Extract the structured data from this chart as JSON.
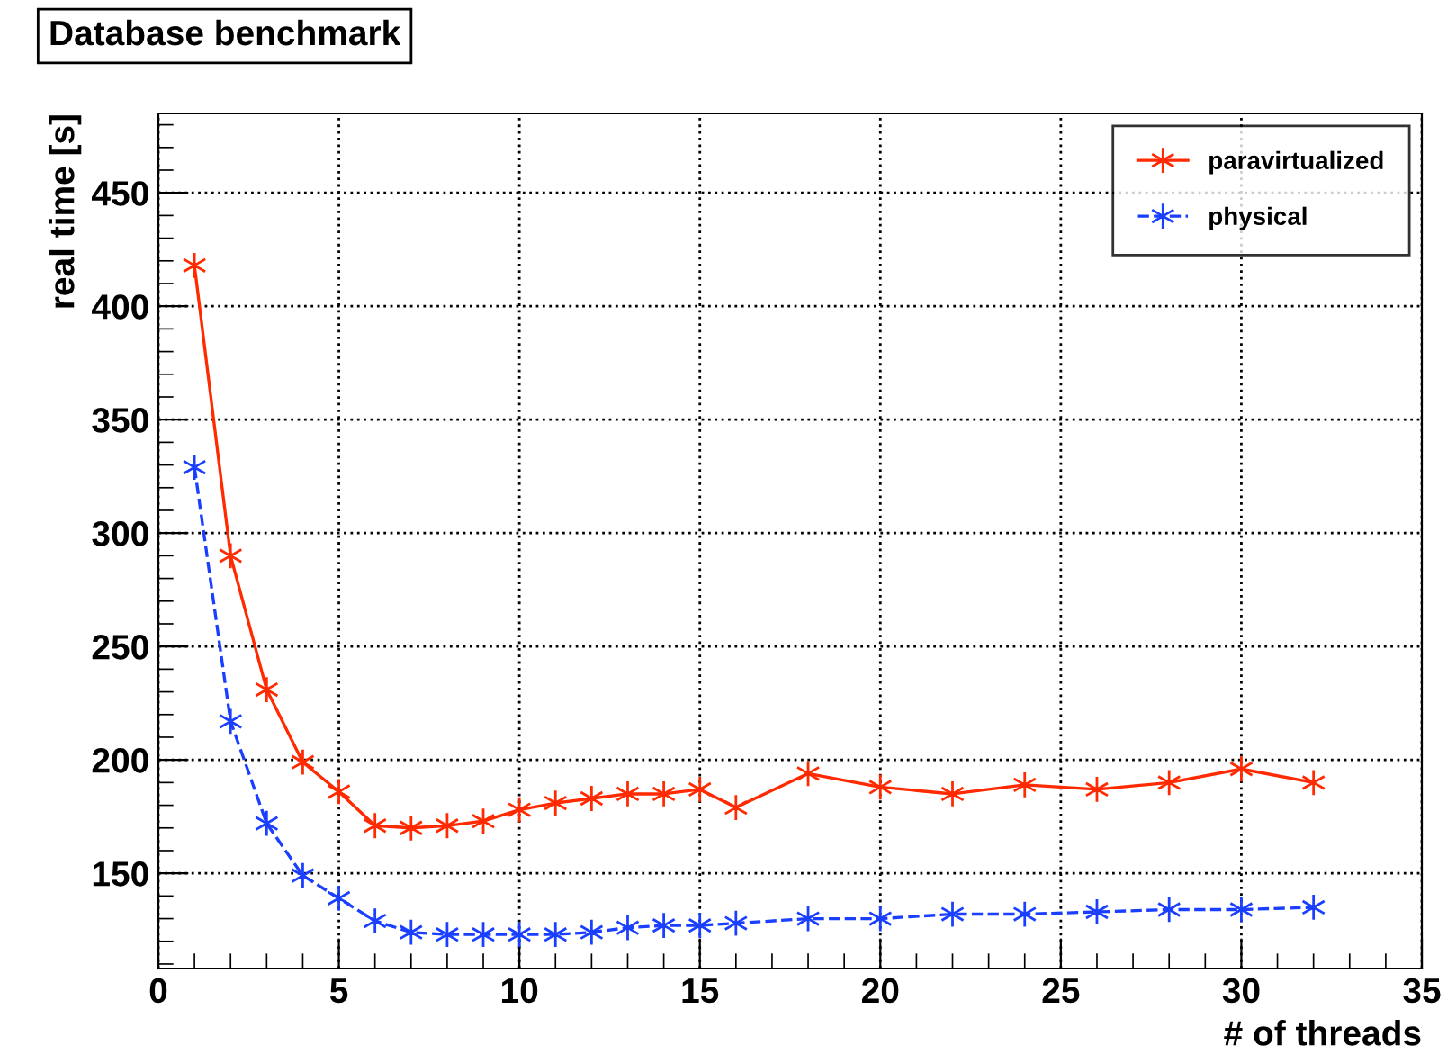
{
  "chart_data": {
    "type": "line",
    "title": "Database benchmark",
    "xlabel": "# of threads",
    "ylabel": "real time [s]",
    "x": [
      1,
      2,
      3,
      4,
      5,
      6,
      7,
      8,
      9,
      10,
      11,
      12,
      13,
      14,
      15,
      16,
      18,
      20,
      22,
      24,
      26,
      28,
      30,
      32
    ],
    "series": [
      {
        "name": "paravirtualized",
        "color": "#ff2a00",
        "line_style": "solid",
        "values": [
          418,
          290,
          231,
          199,
          186,
          171,
          170,
          171,
          173,
          178,
          181,
          183,
          185,
          185,
          187,
          179,
          194,
          188,
          185,
          189,
          187,
          190,
          196,
          190
        ]
      },
      {
        "name": "physical",
        "color": "#1a3fff",
        "line_style": "dashed",
        "values": [
          329,
          217,
          172,
          149,
          139,
          129,
          124,
          123,
          123,
          123,
          123,
          124,
          126,
          127,
          127,
          128,
          130,
          130,
          132,
          132,
          133,
          134,
          134,
          135
        ]
      }
    ],
    "marker": "cross",
    "xlim": [
      0,
      35
    ],
    "ylim": [
      108,
      485
    ],
    "xticks": [
      0,
      5,
      10,
      15,
      20,
      25,
      30,
      35
    ],
    "yticks": [
      150,
      200,
      250,
      300,
      350,
      400,
      450
    ],
    "grid": true,
    "legend": "top right"
  }
}
